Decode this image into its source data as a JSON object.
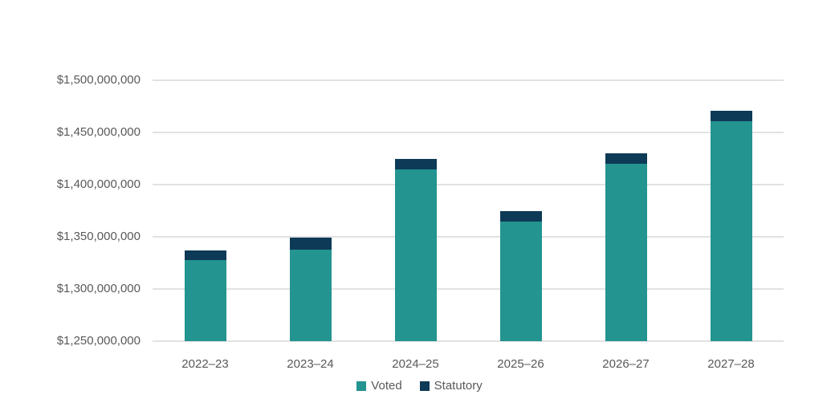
{
  "chart_data": {
    "type": "bar",
    "stacked": true,
    "categories": [
      "2022–23",
      "2023–24",
      "2024–25",
      "2025–26",
      "2026–27",
      "2027–28"
    ],
    "series": [
      {
        "name": "Voted",
        "color": "#23948F",
        "values": [
          1328000000,
          1338000000,
          1415000000,
          1365000000,
          1420000000,
          1461000000
        ]
      },
      {
        "name": "Statutory",
        "color": "#0D3A56",
        "values": [
          9000000,
          11000000,
          10000000,
          10000000,
          10000000,
          10000000
        ]
      }
    ],
    "totals": [
      1337000000,
      1349000000,
      1425000000,
      1375000000,
      1430000000,
      1471000000
    ],
    "title": "",
    "xlabel": "",
    "ylabel": "",
    "ylim": [
      1250000000,
      1500000000
    ],
    "ytick_step": 50000000,
    "ytick_labels": [
      "$1,250,000,000",
      "$1,300,000,000",
      "$1,350,000,000",
      "$1,400,000,000",
      "$1,450,000,000",
      "$1,500,000,000"
    ],
    "grid": true,
    "legend_position": "bottom"
  },
  "colors": {
    "background": "#FFFFFF",
    "gridline": "#E2E2E2",
    "axis_text": "#595959",
    "voted": "#23948F",
    "statutory": "#0D3A56"
  }
}
